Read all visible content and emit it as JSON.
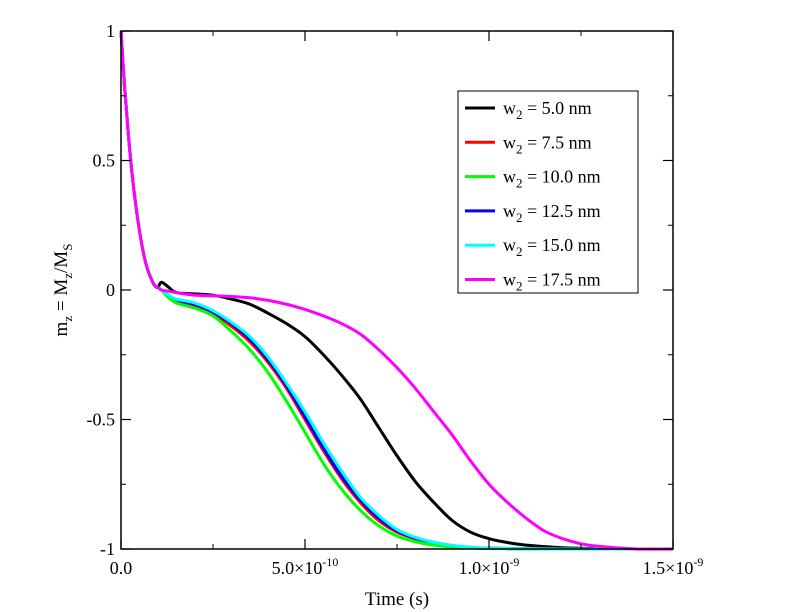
{
  "chart_data": {
    "type": "line",
    "title": "",
    "xlabel": "Time (s)",
    "ylabel": "m_z = M_z/M_S",
    "xlim": [
      0,
      1.5e-09
    ],
    "ylim": [
      -1,
      1
    ],
    "x_ticks": [
      {
        "value": 0,
        "label": "0.0"
      },
      {
        "value": 5e-10,
        "mant": "5.0×10",
        "exp": "-10"
      },
      {
        "value": 1e-09,
        "mant": "1.0×10",
        "exp": "-9"
      },
      {
        "value": 1.5e-09,
        "mant": "1.5×10",
        "exp": "-9"
      }
    ],
    "y_ticks": [
      {
        "value": 1,
        "label": "1"
      },
      {
        "value": 0.5,
        "label": "0.5"
      },
      {
        "value": 0,
        "label": "0"
      },
      {
        "value": -0.5,
        "label": "-0.5"
      },
      {
        "value": -1,
        "label": "-1"
      }
    ],
    "legend_position": "top-right",
    "series": [
      {
        "name": "w2 = 5.0 nm",
        "sub": "2",
        "value_text": "= 5.0 nm",
        "color": "#000000",
        "x": [
          0,
          1e-11,
          2e-11,
          3e-11,
          4e-11,
          5e-11,
          6e-11,
          7e-11,
          8e-11,
          9e-11,
          1e-10,
          1.1e-10,
          1.3e-10,
          1.5e-10,
          2e-10,
          2.5e-10,
          3e-10,
          3.5e-10,
          4e-10,
          4.5e-10,
          5e-10,
          5.5e-10,
          6e-10,
          6.5e-10,
          7e-10,
          7.5e-10,
          8e-10,
          8.5e-10,
          9e-10,
          9.5e-10,
          1e-09,
          1.05e-09,
          1.1e-09,
          1.2e-09,
          1.3e-09,
          1.4e-09,
          1.5e-09
        ],
        "y": [
          1,
          0.78,
          0.6,
          0.45,
          0.33,
          0.23,
          0.15,
          0.09,
          0.05,
          0.02,
          0.01,
          0.03,
          0.01,
          -0.01,
          -0.015,
          -0.02,
          -0.035,
          -0.055,
          -0.09,
          -0.13,
          -0.18,
          -0.25,
          -0.33,
          -0.42,
          -0.53,
          -0.64,
          -0.74,
          -0.82,
          -0.89,
          -0.935,
          -0.96,
          -0.975,
          -0.985,
          -0.995,
          -0.998,
          -1,
          -1
        ]
      },
      {
        "name": "w2 = 7.5 nm",
        "sub": "2",
        "value_text": "= 7.5 nm",
        "color": "#ff0000",
        "x": [
          0,
          1e-11,
          2e-11,
          3e-11,
          4e-11,
          5e-11,
          6e-11,
          7e-11,
          8e-11,
          9e-11,
          1e-10,
          1.1e-10,
          1.3e-10,
          1.5e-10,
          2e-10,
          2.5e-10,
          3e-10,
          3.5e-10,
          4e-10,
          4.5e-10,
          5e-10,
          5.5e-10,
          6e-10,
          6.5e-10,
          7e-10,
          7.5e-10,
          8e-10,
          8.5e-10,
          9e-10,
          9.5e-10,
          1e-09,
          1.1e-09,
          1.2e-09,
          1.3e-09,
          1.5e-09
        ],
        "y": [
          1,
          0.78,
          0.6,
          0.45,
          0.33,
          0.23,
          0.15,
          0.09,
          0.05,
          0.02,
          0.01,
          0.0,
          -0.03,
          -0.045,
          -0.06,
          -0.09,
          -0.14,
          -0.2,
          -0.28,
          -0.38,
          -0.5,
          -0.62,
          -0.73,
          -0.82,
          -0.89,
          -0.935,
          -0.96,
          -0.978,
          -0.988,
          -0.994,
          -0.997,
          -0.999,
          -1,
          -1,
          -1
        ]
      },
      {
        "name": "w2 = 10.0 nm",
        "sub": "2",
        "value_text": "= 10.0 nm",
        "color": "#00ff00",
        "x": [
          0,
          1e-11,
          2e-11,
          3e-11,
          4e-11,
          5e-11,
          6e-11,
          7e-11,
          8e-11,
          9e-11,
          1e-10,
          1.1e-10,
          1.3e-10,
          1.5e-10,
          2e-10,
          2.5e-10,
          3e-10,
          3.5e-10,
          4e-10,
          4.5e-10,
          5e-10,
          5.5e-10,
          6e-10,
          6.5e-10,
          7e-10,
          7.5e-10,
          8e-10,
          8.5e-10,
          9e-10,
          9.5e-10,
          1e-09,
          1.1e-09,
          1.2e-09,
          1.3e-09,
          1.5e-09
        ],
        "y": [
          1,
          0.78,
          0.6,
          0.45,
          0.33,
          0.23,
          0.15,
          0.09,
          0.05,
          0.02,
          0.01,
          0.0,
          -0.03,
          -0.05,
          -0.07,
          -0.1,
          -0.16,
          -0.23,
          -0.32,
          -0.43,
          -0.55,
          -0.67,
          -0.77,
          -0.85,
          -0.91,
          -0.95,
          -0.972,
          -0.985,
          -0.992,
          -0.996,
          -0.998,
          -1,
          -1,
          -1,
          -1
        ]
      },
      {
        "name": "w2 = 12.5 nm",
        "sub": "2",
        "value_text": "= 12.5 nm",
        "color": "#0000ff",
        "x": [
          0,
          1e-11,
          2e-11,
          3e-11,
          4e-11,
          5e-11,
          6e-11,
          7e-11,
          8e-11,
          9e-11,
          1e-10,
          1.1e-10,
          1.3e-10,
          1.5e-10,
          2e-10,
          2.5e-10,
          3e-10,
          3.5e-10,
          4e-10,
          4.5e-10,
          5e-10,
          5.5e-10,
          6e-10,
          6.5e-10,
          7e-10,
          7.5e-10,
          8e-10,
          8.5e-10,
          9e-10,
          9.5e-10,
          1e-09,
          1.1e-09,
          1.2e-09,
          1.3e-09,
          1.5e-09
        ],
        "y": [
          1,
          0.78,
          0.6,
          0.45,
          0.33,
          0.23,
          0.15,
          0.09,
          0.05,
          0.02,
          0.01,
          0.0,
          -0.025,
          -0.04,
          -0.055,
          -0.085,
          -0.13,
          -0.19,
          -0.27,
          -0.37,
          -0.49,
          -0.61,
          -0.72,
          -0.81,
          -0.88,
          -0.93,
          -0.958,
          -0.976,
          -0.987,
          -0.994,
          -0.997,
          -0.999,
          -1,
          -1,
          -1
        ]
      },
      {
        "name": "w2 = 15.0 nm",
        "sub": "2",
        "value_text": "= 15.0 nm",
        "color": "#00ffff",
        "x": [
          0,
          1e-11,
          2e-11,
          3e-11,
          4e-11,
          5e-11,
          6e-11,
          7e-11,
          8e-11,
          9e-11,
          1e-10,
          1.1e-10,
          1.3e-10,
          1.5e-10,
          2e-10,
          2.5e-10,
          3e-10,
          3.5e-10,
          4e-10,
          4.5e-10,
          5e-10,
          5.5e-10,
          6e-10,
          6.5e-10,
          7e-10,
          7.5e-10,
          8e-10,
          8.5e-10,
          9e-10,
          9.5e-10,
          1e-09,
          1.1e-09,
          1.2e-09,
          1.3e-09,
          1.5e-09
        ],
        "y": [
          1,
          0.78,
          0.6,
          0.45,
          0.33,
          0.23,
          0.15,
          0.09,
          0.05,
          0.02,
          0.01,
          0.0,
          -0.02,
          -0.035,
          -0.05,
          -0.08,
          -0.125,
          -0.18,
          -0.26,
          -0.36,
          -0.47,
          -0.59,
          -0.7,
          -0.8,
          -0.87,
          -0.925,
          -0.955,
          -0.974,
          -0.986,
          -0.993,
          -0.997,
          -0.999,
          -1,
          -1,
          -1
        ]
      },
      {
        "name": "w2 = 17.5 nm",
        "sub": "2",
        "value_text": "= 17.5 nm",
        "color": "#ff00ff",
        "x": [
          0,
          1e-11,
          2e-11,
          3e-11,
          4e-11,
          5e-11,
          6e-11,
          7e-11,
          8e-11,
          9e-11,
          1e-10,
          1.1e-10,
          1.3e-10,
          1.5e-10,
          2e-10,
          2.5e-10,
          3e-10,
          3.5e-10,
          4e-10,
          4.5e-10,
          5e-10,
          5.5e-10,
          6e-10,
          6.5e-10,
          7e-10,
          7.5e-10,
          8e-10,
          8.5e-10,
          9e-10,
          9.5e-10,
          1e-09,
          1.05e-09,
          1.1e-09,
          1.15e-09,
          1.2e-09,
          1.25e-09,
          1.3e-09,
          1.4e-09,
          1.5e-09
        ],
        "y": [
          1,
          0.78,
          0.6,
          0.45,
          0.33,
          0.23,
          0.15,
          0.09,
          0.05,
          0.02,
          0.01,
          0.0,
          -0.005,
          -0.01,
          -0.02,
          -0.022,
          -0.025,
          -0.03,
          -0.04,
          -0.055,
          -0.075,
          -0.1,
          -0.13,
          -0.17,
          -0.23,
          -0.3,
          -0.38,
          -0.47,
          -0.56,
          -0.66,
          -0.75,
          -0.82,
          -0.88,
          -0.93,
          -0.96,
          -0.98,
          -0.99,
          -1,
          -1
        ]
      }
    ]
  }
}
